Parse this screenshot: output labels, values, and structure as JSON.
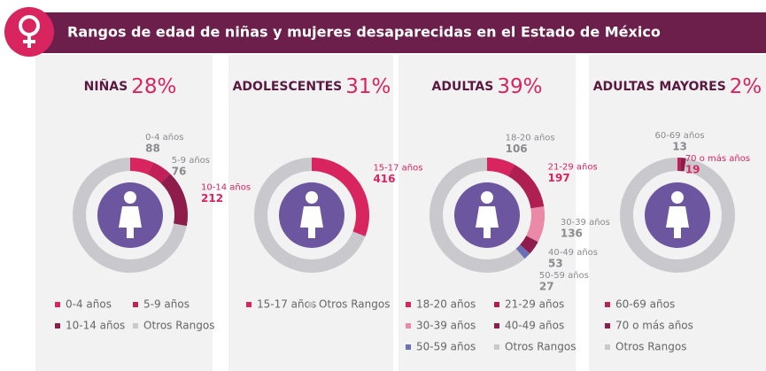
{
  "header": {
    "title": "Rangos de edad de niñas y mujeres desaparecidas en el Estado de México"
  },
  "panels": [
    {
      "title": "NIÑAS",
      "percent": "28%",
      "other_label": "Otros Rangos",
      "other_color": "#c9c9cd",
      "segments": [
        {
          "name": "0-4 años",
          "value": 88,
          "color": "#d8245f",
          "highlight": false
        },
        {
          "name": "5-9 años",
          "value": 76,
          "color": "#c01f58",
          "highlight": false
        },
        {
          "name": "10-14 años",
          "value": 212,
          "color": "#8e1d4b",
          "highlight": true
        }
      ]
    },
    {
      "title": "ADOLESCENTES",
      "percent": "31%",
      "other_label": "Otros Rangos",
      "other_color": "#c9c9cd",
      "segments": [
        {
          "name": "15-17 años",
          "value": 416,
          "color": "#d8245f",
          "highlight": true
        }
      ]
    },
    {
      "title": "ADULTAS",
      "percent": "39%",
      "other_label": "Otros Rangos",
      "other_color": "#c9c9cd",
      "segments": [
        {
          "name": "18-20 años",
          "value": 106,
          "color": "#d8245f",
          "highlight": false
        },
        {
          "name": "21-29 años",
          "value": 197,
          "color": "#b01f52",
          "highlight": true
        },
        {
          "name": "30-39 años",
          "value": 136,
          "color": "#ea8aa8",
          "highlight": false
        },
        {
          "name": "40-49 años",
          "value": 53,
          "color": "#8e1d4b",
          "highlight": false
        },
        {
          "name": "50-59 años",
          "value": 27,
          "color": "#6b6fb5",
          "highlight": false
        }
      ]
    },
    {
      "title": "ADULTAS MAYORES",
      "percent": "2%",
      "other_label": "Otros Rangos",
      "other_color": "#c9c9cd",
      "segments": [
        {
          "name": "60-69 años",
          "value": 13,
          "color": "#c01f58",
          "highlight": false
        },
        {
          "name": "70 o más años",
          "value": 19,
          "color": "#8e1d4b",
          "highlight": true
        }
      ]
    }
  ]
}
